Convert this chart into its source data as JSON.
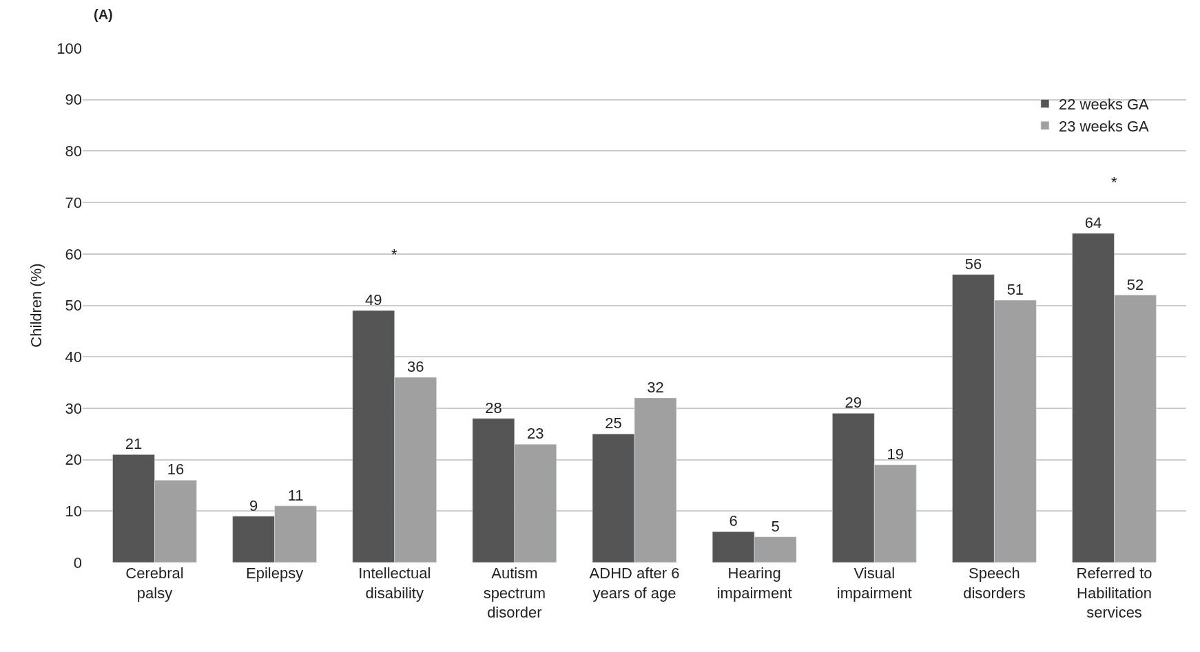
{
  "chart_data": {
    "type": "bar",
    "title": "(A)",
    "ylabel": "Children (%)",
    "categories": [
      "Cerebral\npalsy",
      "Epilepsy",
      "Intellectual\ndisability",
      "Autism\nspectrum\ndisorder",
      "ADHD after 6\nyears of age",
      "Hearing\nimpairment",
      "Visual\nimpairment",
      "Speech\ndisorders",
      "Referred to\nHabilitation\nservices"
    ],
    "series": [
      {
        "name": "22 weeks GA",
        "color": "#555555",
        "values": [
          21,
          9,
          49,
          28,
          25,
          6,
          29,
          56,
          64
        ]
      },
      {
        "name": "23 weeks GA",
        "color": "#a0a0a0",
        "values": [
          16,
          11,
          36,
          23,
          32,
          5,
          19,
          51,
          52
        ]
      }
    ],
    "annotations": [
      "*",
      "*"
    ],
    "ylim": [
      0,
      100
    ],
    "yticks": [
      0,
      10,
      20,
      30,
      40,
      50,
      60,
      70,
      80,
      90,
      100
    ],
    "grid": "y",
    "legend": "top right",
    "data_labels": true
  }
}
